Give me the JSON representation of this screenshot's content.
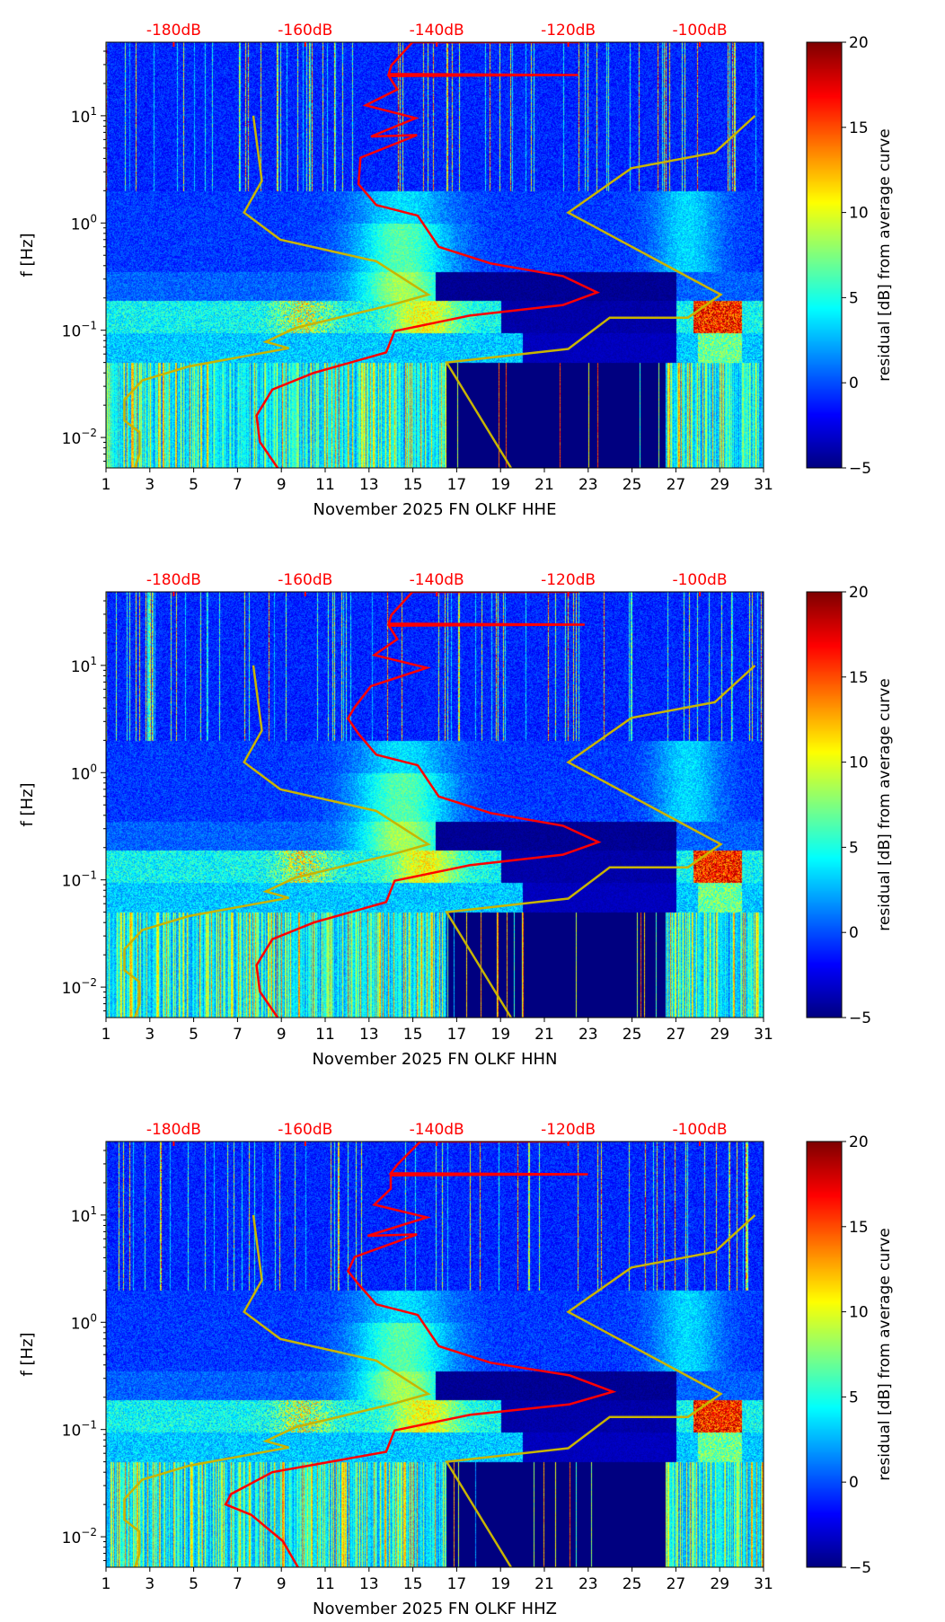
{
  "x_ticks": [
    "1",
    "3",
    "5",
    "7",
    "9",
    "11",
    "13",
    "15",
    "17",
    "19",
    "21",
    "23",
    "25",
    "27",
    "29",
    "31"
  ],
  "x_tick_values": [
    1,
    3,
    5,
    7,
    9,
    11,
    13,
    15,
    17,
    19,
    21,
    23,
    25,
    27,
    29,
    31
  ],
  "top_ticks": [
    "-180dB",
    "-160dB",
    "-140dB",
    "-120dB",
    "-100dB"
  ],
  "top_tick_values": [
    -180,
    -160,
    -140,
    -120,
    -100
  ],
  "colors": {
    "mean_curve": "#ff0000",
    "noise_model": "#c8b400",
    "top_labels": "#ff0000"
  },
  "chart_data": [
    {
      "type": "heatmap",
      "xlabel": "November 2025 FN OLKF  HHE",
      "ylabel": "f [Hz]",
      "xlim": [
        1,
        31
      ],
      "ylim_hz": [
        0.0052,
        48.5
      ],
      "yscale": "log",
      "y_ticks": [
        {
          "label": "10",
          "exp": "1",
          "value": 10
        },
        {
          "label": "10",
          "exp": "0",
          "value": 1
        },
        {
          "label": "10",
          "exp": "−1",
          "value": 0.1
        },
        {
          "label": "10",
          "exp": "−2",
          "value": 0.01
        }
      ],
      "top_axis_db_range": [
        -190.3,
        -90.3
      ],
      "colorbar": {
        "label": "residual [dB] from average curve",
        "range": [
          -5,
          20
        ],
        "ticks": [
          "20",
          "15",
          "10",
          "5",
          "0",
          "−5"
        ],
        "tick_values": [
          20,
          15,
          10,
          5,
          0,
          -5
        ]
      },
      "mean_curve_db_hz": [
        [
          -143.7,
          48.5
        ],
        [
          -118.4,
          48.5
        ],
        [
          -143.7,
          48.5
        ],
        [
          -146.9,
          29.5
        ],
        [
          -147.3,
          24.5
        ],
        [
          -118.5,
          24.0
        ],
        [
          -147.3,
          23.5
        ],
        [
          -146.0,
          17.6
        ],
        [
          -150.8,
          12.5
        ],
        [
          -143.2,
          9.5
        ],
        [
          -150.0,
          6.4
        ],
        [
          -143.0,
          6.6
        ],
        [
          -151.6,
          4.06
        ],
        [
          -151.9,
          2.3
        ],
        [
          -149.2,
          1.47
        ],
        [
          -142.9,
          1.17
        ],
        [
          -139.7,
          0.6
        ],
        [
          -131.8,
          0.42
        ],
        [
          -120.8,
          0.32
        ],
        [
          -115.6,
          0.225
        ],
        [
          -120.8,
          0.172
        ],
        [
          -135.0,
          0.137
        ],
        [
          -146.4,
          0.098
        ],
        [
          -147.7,
          0.062
        ],
        [
          -158.7,
          0.04
        ],
        [
          -165.0,
          0.028
        ],
        [
          -167.4,
          0.016
        ],
        [
          -166.9,
          0.0091
        ],
        [
          -164.2,
          0.0052
        ]
      ],
      "nlnm_db_hz": [
        [
          -167.9,
          10
        ],
        [
          -166.6,
          2.47
        ],
        [
          -169.3,
          1.25
        ],
        [
          -163.8,
          0.7
        ],
        [
          -149.2,
          0.44
        ],
        [
          -141.3,
          0.215
        ],
        [
          -146.9,
          0.172
        ],
        [
          -161.5,
          0.105
        ],
        [
          -166.0,
          0.078
        ],
        [
          -162.5,
          0.068
        ],
        [
          -177.7,
          0.046
        ],
        [
          -184.8,
          0.034
        ],
        [
          -187.5,
          0.0225
        ],
        [
          -187.5,
          0.0144
        ],
        [
          -185.2,
          0.0112
        ],
        [
          -185.2,
          0.007
        ],
        [
          -185.9,
          0.0052
        ]
      ],
      "nhnm_db_hz": [
        [
          -91.6,
          10
        ],
        [
          -97.7,
          4.54
        ],
        [
          -110.4,
          3.24
        ],
        [
          -120.0,
          1.25
        ],
        [
          -96.8,
          0.215
        ],
        [
          -101.8,
          0.131
        ],
        [
          -113.7,
          0.131
        ],
        [
          -120.0,
          0.067
        ],
        [
          -138.5,
          0.05
        ],
        [
          -128.7,
          0.0052
        ]
      ]
    },
    {
      "type": "heatmap",
      "xlabel": "November 2025 FN OLKF  HHN",
      "ylabel": "f [Hz]",
      "xlim": [
        1,
        31
      ],
      "ylim_hz": [
        0.0052,
        48.5
      ],
      "yscale": "log",
      "y_ticks": [
        {
          "label": "10",
          "exp": "1",
          "value": 10
        },
        {
          "label": "10",
          "exp": "0",
          "value": 1
        },
        {
          "label": "10",
          "exp": "−1",
          "value": 0.1
        },
        {
          "label": "10",
          "exp": "−2",
          "value": 0.01
        }
      ],
      "top_axis_db_range": [
        -190.3,
        -90.3
      ],
      "colorbar": {
        "label": "residual [dB] from average curve",
        "range": [
          -5,
          20
        ],
        "ticks": [
          "20",
          "15",
          "10",
          "5",
          "0",
          "−5"
        ],
        "tick_values": [
          20,
          15,
          10,
          5,
          0,
          -5
        ]
      },
      "mean_curve_db_hz": [
        [
          -143.7,
          48.5
        ],
        [
          -118.4,
          48.5
        ],
        [
          -143.7,
          48.5
        ],
        [
          -146.9,
          29.5
        ],
        [
          -147.3,
          24.5
        ],
        [
          -117.5,
          24.0
        ],
        [
          -147.3,
          23.5
        ],
        [
          -146.0,
          17.6
        ],
        [
          -149.5,
          12.5
        ],
        [
          -141.5,
          9.5
        ],
        [
          -150.0,
          6.4
        ],
        [
          -152.5,
          4.06
        ],
        [
          -153.5,
          3.2
        ],
        [
          -151.9,
          2.3
        ],
        [
          -149.2,
          1.47
        ],
        [
          -142.9,
          1.17
        ],
        [
          -139.7,
          0.6
        ],
        [
          -131.8,
          0.42
        ],
        [
          -120.8,
          0.32
        ],
        [
          -115.4,
          0.225
        ],
        [
          -120.8,
          0.172
        ],
        [
          -135.0,
          0.137
        ],
        [
          -146.4,
          0.098
        ],
        [
          -147.7,
          0.062
        ],
        [
          -158.7,
          0.04
        ],
        [
          -165.0,
          0.028
        ],
        [
          -167.4,
          0.016
        ],
        [
          -166.9,
          0.0091
        ],
        [
          -164.2,
          0.0052
        ]
      ],
      "nlnm_db_hz": [
        [
          -167.9,
          10
        ],
        [
          -166.6,
          2.47
        ],
        [
          -169.3,
          1.25
        ],
        [
          -163.8,
          0.7
        ],
        [
          -149.2,
          0.44
        ],
        [
          -141.3,
          0.215
        ],
        [
          -146.9,
          0.172
        ],
        [
          -161.5,
          0.105
        ],
        [
          -166.0,
          0.078
        ],
        [
          -162.5,
          0.068
        ],
        [
          -177.7,
          0.046
        ],
        [
          -184.8,
          0.034
        ],
        [
          -187.5,
          0.0225
        ],
        [
          -187.5,
          0.0144
        ],
        [
          -185.2,
          0.0112
        ],
        [
          -185.2,
          0.007
        ],
        [
          -185.9,
          0.0052
        ]
      ],
      "nhnm_db_hz": [
        [
          -91.6,
          10
        ],
        [
          -97.7,
          4.54
        ],
        [
          -110.4,
          3.24
        ],
        [
          -120.0,
          1.25
        ],
        [
          -96.8,
          0.215
        ],
        [
          -101.8,
          0.131
        ],
        [
          -113.7,
          0.131
        ],
        [
          -120.0,
          0.067
        ],
        [
          -138.5,
          0.05
        ],
        [
          -128.7,
          0.0052
        ]
      ]
    },
    {
      "type": "heatmap",
      "xlabel": "November 2025 FN OLKF  HHZ",
      "ylabel": "f [Hz]",
      "xlim": [
        1,
        31
      ],
      "ylim_hz": [
        0.0052,
        48.5
      ],
      "yscale": "log",
      "y_ticks": [
        {
          "label": "10",
          "exp": "1",
          "value": 10
        },
        {
          "label": "10",
          "exp": "0",
          "value": 1
        },
        {
          "label": "10",
          "exp": "−1",
          "value": 0.1
        },
        {
          "label": "10",
          "exp": "−2",
          "value": 0.01
        }
      ],
      "top_axis_db_range": [
        -190.3,
        -90.3
      ],
      "colorbar": {
        "label": "residual [dB] from average curve",
        "range": [
          -5,
          20
        ],
        "ticks": [
          "20",
          "15",
          "10",
          "5",
          "0",
          "−5"
        ],
        "tick_values": [
          20,
          15,
          10,
          5,
          0,
          -5
        ]
      },
      "mean_curve_db_hz": [
        [
          -142.5,
          48.5
        ],
        [
          -118.4,
          48.5
        ],
        [
          -142.5,
          48.5
        ],
        [
          -146.0,
          29.5
        ],
        [
          -147.0,
          24.5
        ],
        [
          -117.0,
          24.0
        ],
        [
          -147.0,
          23.5
        ],
        [
          -147.0,
          17.6
        ],
        [
          -149.5,
          12.5
        ],
        [
          -141.5,
          9.5
        ],
        [
          -150.5,
          6.4
        ],
        [
          -143.0,
          6.6
        ],
        [
          -152.5,
          4.06
        ],
        [
          -153.5,
          3.0
        ],
        [
          -152.0,
          2.3
        ],
        [
          -149.2,
          1.47
        ],
        [
          -142.9,
          1.17
        ],
        [
          -139.7,
          0.6
        ],
        [
          -131.8,
          0.42
        ],
        [
          -119.8,
          0.32
        ],
        [
          -113.2,
          0.225
        ],
        [
          -119.8,
          0.172
        ],
        [
          -135.0,
          0.137
        ],
        [
          -146.4,
          0.098
        ],
        [
          -147.7,
          0.062
        ],
        [
          -165.0,
          0.04
        ],
        [
          -171.3,
          0.025
        ],
        [
          -172.1,
          0.02
        ],
        [
          -168.2,
          0.016
        ],
        [
          -163.4,
          0.0091
        ],
        [
          -161.1,
          0.0052
        ]
      ],
      "nlnm_db_hz": [
        [
          -167.9,
          10
        ],
        [
          -166.6,
          2.47
        ],
        [
          -169.3,
          1.25
        ],
        [
          -163.8,
          0.7
        ],
        [
          -149.2,
          0.44
        ],
        [
          -141.3,
          0.215
        ],
        [
          -146.9,
          0.172
        ],
        [
          -161.5,
          0.105
        ],
        [
          -166.0,
          0.078
        ],
        [
          -162.5,
          0.068
        ],
        [
          -177.7,
          0.046
        ],
        [
          -184.8,
          0.034
        ],
        [
          -187.5,
          0.0225
        ],
        [
          -187.5,
          0.0144
        ],
        [
          -185.2,
          0.0112
        ],
        [
          -185.2,
          0.007
        ],
        [
          -185.9,
          0.0052
        ]
      ],
      "nhnm_db_hz": [
        [
          -91.6,
          10
        ],
        [
          -97.7,
          4.54
        ],
        [
          -110.4,
          3.24
        ],
        [
          -120.0,
          1.25
        ],
        [
          -96.8,
          0.215
        ],
        [
          -101.8,
          0.131
        ],
        [
          -113.7,
          0.131
        ],
        [
          -120.0,
          0.067
        ],
        [
          -138.5,
          0.05
        ],
        [
          -128.7,
          0.0052
        ]
      ]
    }
  ]
}
